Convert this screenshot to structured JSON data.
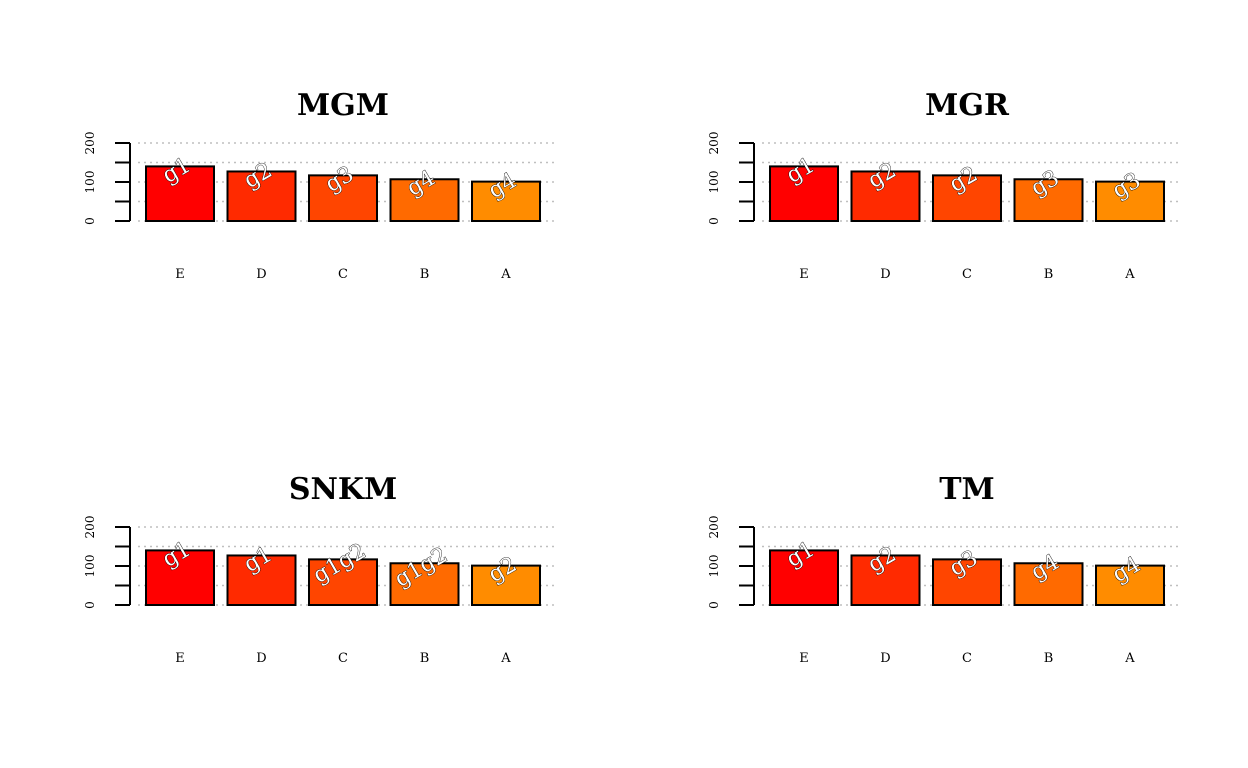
{
  "chart_data": [
    {
      "type": "bar",
      "title": "MGM",
      "categories": [
        "E",
        "D",
        "C",
        "B",
        "A"
      ],
      "values": [
        140,
        127,
        117,
        107,
        101
      ],
      "group_labels": [
        "g1",
        "g2",
        "g3",
        "g4",
        "g4"
      ],
      "ylim": [
        0,
        200
      ],
      "yticks": [
        "0",
        "100",
        "200"
      ],
      "grid": true,
      "colors": [
        "#ff0000",
        "#ff2a00",
        "#ff4500",
        "#ff6a00",
        "#ff8c00"
      ]
    },
    {
      "type": "bar",
      "title": "MGR",
      "categories": [
        "E",
        "D",
        "C",
        "B",
        "A"
      ],
      "values": [
        140,
        127,
        117,
        107,
        101
      ],
      "group_labels": [
        "g1",
        "g2",
        "g2",
        "g3",
        "g3"
      ],
      "ylim": [
        0,
        200
      ],
      "yticks": [
        "0",
        "100",
        "200"
      ],
      "grid": true,
      "colors": [
        "#ff0000",
        "#ff2a00",
        "#ff4500",
        "#ff6a00",
        "#ff8c00"
      ]
    },
    {
      "type": "bar",
      "title": "SNKM",
      "categories": [
        "E",
        "D",
        "C",
        "B",
        "A"
      ],
      "values": [
        140,
        127,
        117,
        107,
        101
      ],
      "group_labels": [
        "g1",
        "g1",
        "g1g2",
        "g1g2",
        "g2"
      ],
      "ylim": [
        0,
        200
      ],
      "yticks": [
        "0",
        "100",
        "200"
      ],
      "grid": true,
      "colors": [
        "#ff0000",
        "#ff2a00",
        "#ff4500",
        "#ff6a00",
        "#ff8c00"
      ]
    },
    {
      "type": "bar",
      "title": "TM",
      "categories": [
        "E",
        "D",
        "C",
        "B",
        "A"
      ],
      "values": [
        140,
        127,
        117,
        107,
        101
      ],
      "group_labels": [
        "g1",
        "g2",
        "g3",
        "g4",
        "g4"
      ],
      "ylim": [
        0,
        200
      ],
      "yticks": [
        "0",
        "100",
        "200"
      ],
      "grid": true,
      "colors": [
        "#ff0000",
        "#ff2a00",
        "#ff4500",
        "#ff6a00",
        "#ff8c00"
      ]
    }
  ]
}
